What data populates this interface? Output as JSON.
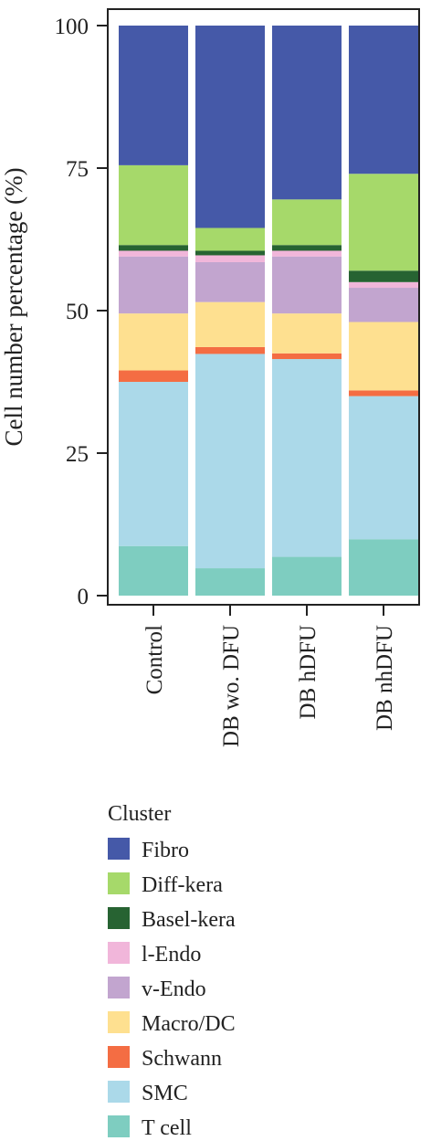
{
  "chart_data": {
    "type": "bar",
    "stacked": true,
    "ylabel": "Cell number percentage (%)",
    "xlabel": "",
    "ylim": [
      0,
      100
    ],
    "yticks": [
      0,
      25,
      50,
      75,
      100
    ],
    "categories": [
      "Control",
      "DB wo. DFU",
      "DB hDFU",
      "DB nhDFU"
    ],
    "grid": false,
    "legend": {
      "title": "Cluster",
      "position": "bottom"
    },
    "series": [
      {
        "name": "T cell",
        "color": "#7ECDC0",
        "values": [
          8.7,
          4.8,
          6.8,
          9.9
        ]
      },
      {
        "name": "SMC",
        "color": "#ABD9E9",
        "values": [
          28.8,
          37.6,
          34.7,
          25.1
        ]
      },
      {
        "name": "Schwann",
        "color": "#F46D43",
        "values": [
          2.0,
          1.2,
          1.0,
          1.0
        ]
      },
      {
        "name": "Macro/DC",
        "color": "#FEE090",
        "values": [
          10.0,
          7.9,
          7.0,
          12.0
        ]
      },
      {
        "name": "v-Endo",
        "color": "#C2A5CF",
        "values": [
          10.0,
          7.0,
          10.0,
          6.0
        ]
      },
      {
        "name": "l-Endo",
        "color": "#F1B6DA",
        "values": [
          1.0,
          1.2,
          1.0,
          1.0
        ]
      },
      {
        "name": "Basel-kera",
        "color": "#276332",
        "values": [
          1.0,
          0.8,
          1.0,
          2.0
        ]
      },
      {
        "name": "Diff-kera",
        "color": "#A6D96A",
        "values": [
          14.0,
          4.0,
          8.0,
          17.0
        ]
      },
      {
        "name": "Fibro",
        "color": "#4559A8",
        "values": [
          24.5,
          35.5,
          30.5,
          26.0
        ]
      }
    ],
    "legend_order": [
      "Fibro",
      "Diff-kera",
      "Basel-kera",
      "l-Endo",
      "v-Endo",
      "Macro/DC",
      "Schwann",
      "SMC",
      "T cell"
    ]
  }
}
